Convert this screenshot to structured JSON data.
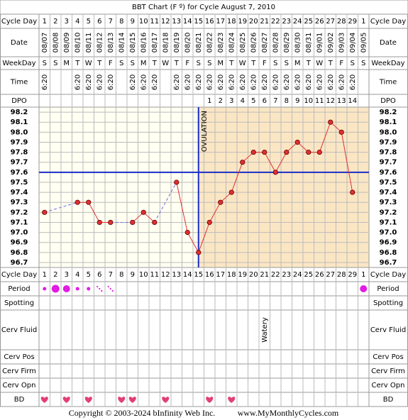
{
  "header": {
    "title": "BBT Chart (F º) for Cycle August 7, 2010"
  },
  "row_labels": {
    "cycle_day": "Cycle Day",
    "date": "Date",
    "weekday": "WeekDay",
    "time": "Time",
    "dpo": "DPO",
    "period": "Period",
    "spotting": "Spotting",
    "cerv_fluid": "Cerv Fluid",
    "cerv_pos": "Cerv Pos",
    "cerv_firm": "Cerv Firm",
    "cerv_opn": "Cerv Opn",
    "bd": "BD"
  },
  "chart_data": {
    "type": "line",
    "categories": [
      "1",
      "2",
      "3",
      "4",
      "5",
      "6",
      "7",
      "8",
      "9",
      "10",
      "11",
      "12",
      "13",
      "14",
      "15",
      "16",
      "17",
      "18",
      "19",
      "20",
      "21",
      "22",
      "23",
      "24",
      "25",
      "26",
      "27",
      "28",
      "29",
      "1"
    ],
    "dates": [
      "08/07",
      "08/08",
      "08/09",
      "08/10",
      "08/11",
      "08/12",
      "08/13",
      "08/14",
      "08/15",
      "08/16",
      "08/17",
      "08/18",
      "08/19",
      "08/20",
      "08/21",
      "08/22",
      "08/23",
      "08/24",
      "08/25",
      "08/26",
      "08/27",
      "08/28",
      "08/29",
      "08/30",
      "08/31",
      "09/01",
      "09/02",
      "09/03",
      "09/04",
      "09/05"
    ],
    "weekdays": [
      "S",
      "S",
      "M",
      "T",
      "W",
      "T",
      "F",
      "S",
      "S",
      "M",
      "T",
      "W",
      "T",
      "F",
      "S",
      "S",
      "M",
      "T",
      "W",
      "T",
      "F",
      "S",
      "S",
      "M",
      "T",
      "W",
      "T",
      "F",
      "S",
      "S"
    ],
    "times": [
      "6:20",
      null,
      null,
      "6:20",
      "6:20",
      "6:20",
      "6:20",
      null,
      "6:20",
      "6:20",
      "6:20",
      null,
      "6:20",
      "6:20",
      "6:20",
      "6:20",
      "6:20",
      "6:20",
      "6:20",
      "6:20",
      "6:20",
      "6:20",
      "6:20",
      "6:20",
      "6:20",
      "6:20",
      "6:20",
      "6:20",
      "6:20",
      null
    ],
    "dpo": [
      null,
      null,
      null,
      null,
      null,
      null,
      null,
      null,
      null,
      null,
      null,
      null,
      null,
      null,
      null,
      1,
      2,
      3,
      4,
      5,
      6,
      7,
      8,
      9,
      10,
      11,
      12,
      13,
      14,
      null
    ],
    "values": [
      97.2,
      null,
      null,
      97.3,
      97.3,
      97.1,
      97.1,
      null,
      97.1,
      97.2,
      97.1,
      null,
      97.5,
      97.0,
      96.8,
      97.1,
      97.3,
      97.4,
      97.7,
      97.8,
      97.8,
      97.6,
      97.8,
      97.9,
      97.8,
      97.8,
      98.1,
      98.0,
      97.4,
      null
    ],
    "color": "#e03030",
    "ylim": [
      96.65,
      98.25
    ],
    "yticks": [
      {
        "value": 98.2,
        "label": "98.2"
      },
      98.1,
      {
        "value": 98,
        "label": "98.0"
      },
      97.9,
      97.8,
      97.7,
      97.6,
      97.5,
      97.4,
      97.3,
      97.2,
      97.1,
      {
        "value": 97,
        "label": "97.0"
      },
      96.9,
      96.8,
      96.7
    ],
    "grid": true,
    "coverline": 97.6,
    "coverline_color": "#1a2ec8",
    "ovulation": {
      "label": "OVULATION",
      "category": "15"
    }
  },
  "cerv_fluid": [
    null,
    null,
    null,
    null,
    null,
    null,
    null,
    null,
    null,
    null,
    null,
    null,
    null,
    null,
    null,
    null,
    null,
    null,
    null,
    null,
    "Watery",
    null,
    null,
    null,
    null,
    null,
    null,
    null,
    null,
    null
  ],
  "footer": {
    "copyright": "Copyright © 2003-2024 bInfinity Web Inc.",
    "site": "www.MyMonthlyCycles.com"
  }
}
